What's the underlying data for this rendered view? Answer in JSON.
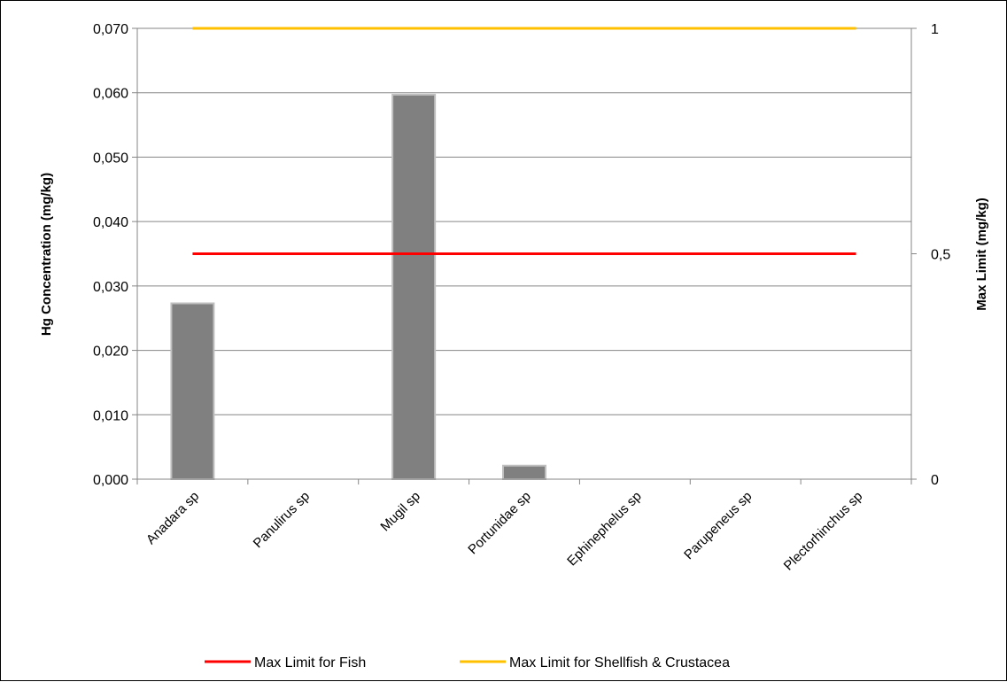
{
  "chart_data": {
    "type": "bar",
    "categories": [
      "Anadara sp",
      "Panulirus sp",
      "Mugil sp",
      "Portunidae sp",
      "Ephinephelus sp",
      "Parupeneus sp",
      "Plectorhinchus sp"
    ],
    "series": [
      {
        "values": [
          0.0273,
          0,
          0.0597,
          0.0021,
          0,
          0,
          0
        ],
        "color": "#808080"
      }
    ],
    "lines": [
      {
        "name": "Max Limit for Fish",
        "value": 0.5,
        "axis": "right",
        "color": "#ff0000"
      },
      {
        "name": "Max Limit for Shellfish & Crustacea",
        "value": 1,
        "axis": "right",
        "color": "#ffc000"
      }
    ],
    "ylabel": "Hg  Concentration (mg/kg)",
    "y2label": "Max Limit (mg/kg)",
    "ylim": [
      0,
      0.07
    ],
    "y2lim": [
      0,
      1
    ],
    "yticks": [
      "0,000",
      "0,010",
      "0,020",
      "0,030",
      "0,040",
      "0,050",
      "0,060",
      "0,070"
    ],
    "y2ticks": [
      "0",
      "0,5",
      "1"
    ],
    "grid": true,
    "legend_position": "bottom"
  }
}
